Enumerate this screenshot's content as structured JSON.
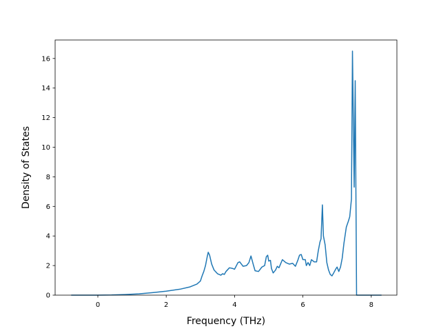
{
  "chart_data": {
    "type": "line",
    "title": "",
    "xlabel": "Frequency (THz)",
    "ylabel": "Density of States",
    "xlim": [
      -1.25,
      8.75
    ],
    "ylim": [
      0,
      17.25
    ],
    "grid": false,
    "legend": "none",
    "xticks": [
      0,
      2,
      4,
      6,
      8
    ],
    "yticks": [
      0,
      2,
      4,
      6,
      8,
      10,
      12,
      14,
      16
    ],
    "series": [
      {
        "name": "",
        "color": "#1f77b4",
        "points": [
          [
            -0.78,
            0.0
          ],
          [
            -0.4,
            0.0
          ],
          [
            0.0,
            0.0
          ],
          [
            0.4,
            0.01
          ],
          [
            0.8,
            0.04
          ],
          [
            1.2,
            0.09
          ],
          [
            1.6,
            0.17
          ],
          [
            2.0,
            0.27
          ],
          [
            2.4,
            0.4
          ],
          [
            2.7,
            0.56
          ],
          [
            2.9,
            0.75
          ],
          [
            3.0,
            0.95
          ],
          [
            3.05,
            1.3
          ],
          [
            3.1,
            1.6
          ],
          [
            3.15,
            2.0
          ],
          [
            3.2,
            2.6
          ],
          [
            3.23,
            2.9
          ],
          [
            3.27,
            2.7
          ],
          [
            3.33,
            2.1
          ],
          [
            3.4,
            1.7
          ],
          [
            3.5,
            1.45
          ],
          [
            3.6,
            1.35
          ],
          [
            3.65,
            1.45
          ],
          [
            3.7,
            1.4
          ],
          [
            3.75,
            1.6
          ],
          [
            3.85,
            1.85
          ],
          [
            3.95,
            1.8
          ],
          [
            4.0,
            1.75
          ],
          [
            4.1,
            2.2
          ],
          [
            4.15,
            2.25
          ],
          [
            4.25,
            1.95
          ],
          [
            4.35,
            2.0
          ],
          [
            4.42,
            2.2
          ],
          [
            4.48,
            2.65
          ],
          [
            4.55,
            2.05
          ],
          [
            4.6,
            1.65
          ],
          [
            4.7,
            1.6
          ],
          [
            4.8,
            1.9
          ],
          [
            4.88,
            2.0
          ],
          [
            4.93,
            2.6
          ],
          [
            4.97,
            2.7
          ],
          [
            5.0,
            2.3
          ],
          [
            5.05,
            2.35
          ],
          [
            5.08,
            1.8
          ],
          [
            5.13,
            1.5
          ],
          [
            5.2,
            1.7
          ],
          [
            5.25,
            1.95
          ],
          [
            5.3,
            1.85
          ],
          [
            5.4,
            2.4
          ],
          [
            5.5,
            2.2
          ],
          [
            5.6,
            2.1
          ],
          [
            5.7,
            2.15
          ],
          [
            5.78,
            1.95
          ],
          [
            5.85,
            2.35
          ],
          [
            5.9,
            2.7
          ],
          [
            5.95,
            2.75
          ],
          [
            6.0,
            2.4
          ],
          [
            6.07,
            2.4
          ],
          [
            6.1,
            2.0
          ],
          [
            6.15,
            2.2
          ],
          [
            6.2,
            2.0
          ],
          [
            6.25,
            2.4
          ],
          [
            6.33,
            2.25
          ],
          [
            6.4,
            2.25
          ],
          [
            6.45,
            3.0
          ],
          [
            6.5,
            3.6
          ],
          [
            6.53,
            3.8
          ],
          [
            6.57,
            6.1
          ],
          [
            6.6,
            4.0
          ],
          [
            6.65,
            3.4
          ],
          [
            6.7,
            2.2
          ],
          [
            6.75,
            1.7
          ],
          [
            6.8,
            1.4
          ],
          [
            6.85,
            1.3
          ],
          [
            6.9,
            1.5
          ],
          [
            6.97,
            1.8
          ],
          [
            7.0,
            1.9
          ],
          [
            7.05,
            1.6
          ],
          [
            7.1,
            1.9
          ],
          [
            7.15,
            2.5
          ],
          [
            7.2,
            3.5
          ],
          [
            7.27,
            4.6
          ],
          [
            7.33,
            5.0
          ],
          [
            7.37,
            5.3
          ],
          [
            7.42,
            6.5
          ],
          [
            7.45,
            16.5
          ],
          [
            7.5,
            7.3
          ],
          [
            7.53,
            14.5
          ],
          [
            7.57,
            0.0
          ],
          [
            8.3,
            0.0
          ]
        ]
      }
    ]
  }
}
